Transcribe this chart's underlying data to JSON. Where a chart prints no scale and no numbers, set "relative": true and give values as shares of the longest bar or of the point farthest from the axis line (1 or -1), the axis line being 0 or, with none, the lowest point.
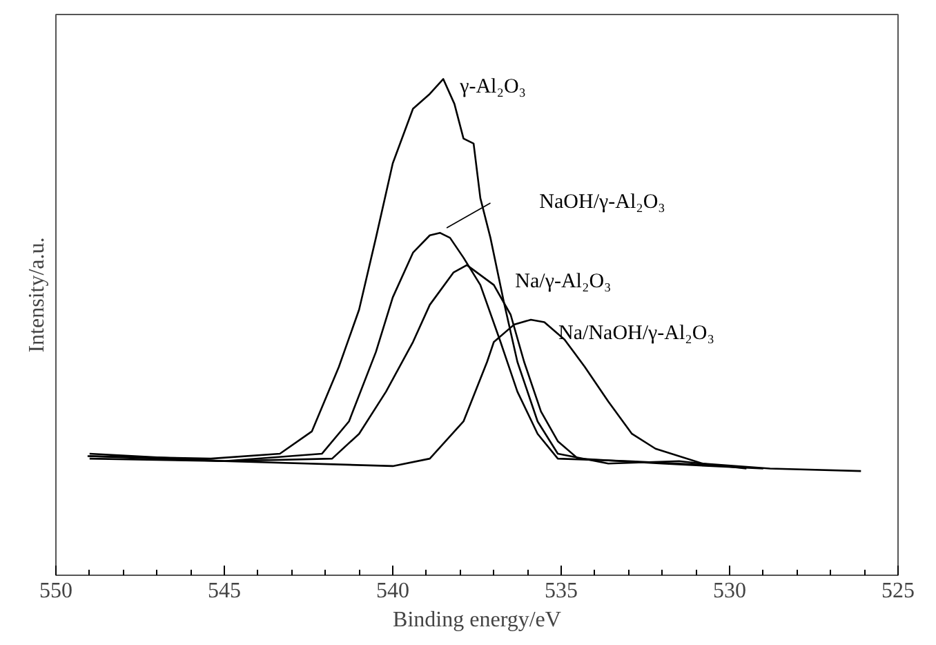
{
  "chart_data": {
    "type": "line",
    "relative": true,
    "xlabel": "Binding energy/eV",
    "ylabel": "Intensity/a.u.",
    "xlim": [
      550,
      525
    ],
    "xticks": [
      550,
      545,
      540,
      535,
      530,
      525
    ],
    "grid": false,
    "line_style": "solid",
    "marker": "none",
    "series": [
      {
        "name": "γ-Al₂O₃",
        "color": "#000000",
        "x": [
          549.06,
          545.4,
          543.35,
          542.4,
          541.6,
          541.0,
          540.5,
          540.0,
          539.4,
          538.9,
          538.5,
          538.17,
          537.9,
          537.6,
          537.4,
          537.1,
          536.7,
          536.3,
          535.7,
          535.1,
          533.6,
          531.5,
          529.5
        ],
        "values": [
          0.24,
          0.235,
          0.245,
          0.29,
          0.42,
          0.535,
          0.68,
          0.83,
          0.94,
          0.97,
          1.0,
          0.95,
          0.88,
          0.87,
          0.76,
          0.68,
          0.55,
          0.43,
          0.31,
          0.245,
          0.225,
          0.23,
          0.215
        ]
      },
      {
        "name": "NaOH/γ-Al₂O₃",
        "color": "#000000",
        "x": [
          549.0,
          545.0,
          542.1,
          541.3,
          540.5,
          540.0,
          539.4,
          538.9,
          538.6,
          538.3,
          537.9,
          537.4,
          536.8,
          536.3,
          535.7,
          535.1,
          533.0,
          530.0
        ],
        "values": [
          0.24,
          0.23,
          0.245,
          0.31,
          0.45,
          0.56,
          0.65,
          0.685,
          0.69,
          0.68,
          0.64,
          0.585,
          0.47,
          0.37,
          0.285,
          0.235,
          0.23,
          0.22
        ]
      },
      {
        "name": "Na/γ-Al₂O₃",
        "color": "#000000",
        "x": [
          549.0,
          545.0,
          541.8,
          541.0,
          540.2,
          539.4,
          538.9,
          538.2,
          537.8,
          537.5,
          537.0,
          536.5,
          536.1,
          535.6,
          535.1,
          534.5,
          532.0,
          529.0
        ],
        "values": [
          0.245,
          0.23,
          0.235,
          0.285,
          0.37,
          0.47,
          0.545,
          0.61,
          0.625,
          0.61,
          0.585,
          0.525,
          0.43,
          0.33,
          0.27,
          0.235,
          0.225,
          0.215
        ]
      },
      {
        "name": "Na/NaOH/γ-Al₂O₃",
        "color": "#000000",
        "x": [
          549.0,
          545.0,
          540.0,
          538.9,
          537.9,
          537.2,
          537.0,
          536.4,
          535.9,
          535.5,
          534.9,
          534.3,
          533.6,
          532.9,
          532.2,
          530.8,
          528.8,
          526.1
        ],
        "values": [
          0.235,
          0.23,
          0.22,
          0.235,
          0.31,
          0.43,
          0.47,
          0.505,
          0.515,
          0.51,
          0.475,
          0.42,
          0.35,
          0.285,
          0.255,
          0.225,
          0.215,
          0.21
        ]
      }
    ]
  }
}
